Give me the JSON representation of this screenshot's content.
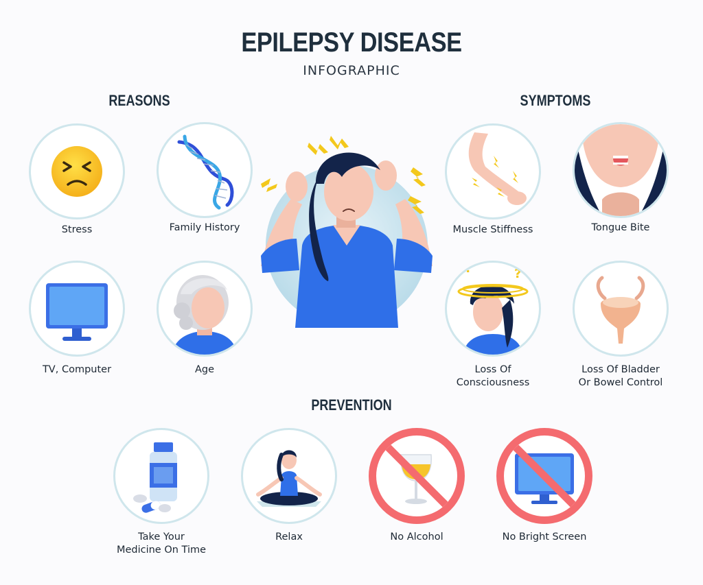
{
  "header": {
    "title": "EPILEPSY DISEASE",
    "subtitle": "INFOGRAPHIC"
  },
  "reasons": {
    "heading": "REASONS",
    "items": [
      {
        "label": "Stress",
        "icon": "stressed-face-icon"
      },
      {
        "label": "Family History",
        "icon": "dna-icon"
      },
      {
        "label": "TV, Computer",
        "icon": "monitor-icon"
      },
      {
        "label": "Age",
        "icon": "elderly-person-icon"
      }
    ]
  },
  "symptoms": {
    "heading": "SYMPTOMS",
    "items": [
      {
        "label": "Muscle Stiffness",
        "icon": "stiff-arm-icon"
      },
      {
        "label": "Tongue Bite",
        "icon": "tongue-bite-icon"
      },
      {
        "label": "Loss Of",
        "label2": "Consciousness",
        "icon": "dizzy-person-icon"
      },
      {
        "label": "Loss Of Bladder",
        "label2": "Or Bowel Control",
        "icon": "bladder-icon"
      }
    ]
  },
  "prevention": {
    "heading": "PREVENTION",
    "items": [
      {
        "label": "Take Your",
        "label2": "Medicine On Time",
        "icon": "medicine-bottle-icon"
      },
      {
        "label": "Relax",
        "icon": "meditation-icon"
      },
      {
        "label": "No Alcohol",
        "icon": "no-wine-icon"
      },
      {
        "label": "No Bright Screen",
        "icon": "no-screen-icon"
      }
    ]
  },
  "colors": {
    "accent_blue": "#2f6fe8",
    "circle_border": "#cfe6ec",
    "forbid_red": "#f46b6f",
    "bolt_yellow": "#f3c81c",
    "hair": "#13244a",
    "skin": "#f7c7b5"
  }
}
